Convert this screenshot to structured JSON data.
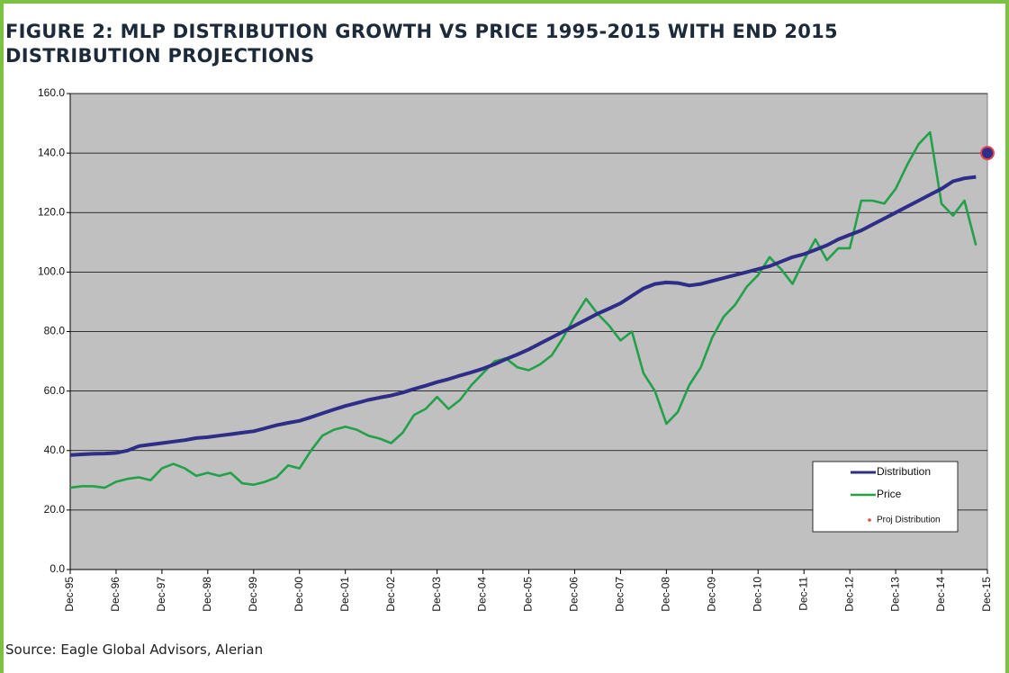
{
  "chart_data": {
    "type": "line",
    "title": "FIGURE 2: MLP DISTRIBUTION GROWTH VS PRICE 1995-2015 WITH END 2015 DISTRIBUTION PROJECTIONS",
    "source": "Source: Eagle Global Advisors, Alerian",
    "x": [
      "1995-12",
      "1996-03",
      "1996-06",
      "1996-09",
      "1996-12",
      "1997-03",
      "1997-06",
      "1997-09",
      "1997-12",
      "1998-03",
      "1998-06",
      "1998-09",
      "1998-12",
      "1999-03",
      "1999-06",
      "1999-09",
      "1999-12",
      "2000-03",
      "2000-06",
      "2000-09",
      "2000-12",
      "2001-03",
      "2001-06",
      "2001-09",
      "2001-12",
      "2002-03",
      "2002-06",
      "2002-09",
      "2002-12",
      "2003-03",
      "2003-06",
      "2003-09",
      "2003-12",
      "2004-03",
      "2004-06",
      "2004-09",
      "2004-12",
      "2005-03",
      "2005-06",
      "2005-09",
      "2005-12",
      "2006-03",
      "2006-06",
      "2006-09",
      "2006-12",
      "2007-03",
      "2007-06",
      "2007-09",
      "2007-12",
      "2008-03",
      "2008-06",
      "2008-09",
      "2008-12",
      "2009-03",
      "2009-06",
      "2009-09",
      "2009-12",
      "2010-03",
      "2010-06",
      "2010-09",
      "2010-12",
      "2011-03",
      "2011-06",
      "2011-09",
      "2011-12",
      "2012-03",
      "2012-06",
      "2012-09",
      "2012-12",
      "2013-03",
      "2013-06",
      "2013-09",
      "2013-12",
      "2014-03",
      "2014-06",
      "2014-09",
      "2014-12",
      "2015-03",
      "2015-06",
      "2015-09"
    ],
    "series": [
      {
        "name": "Distribution",
        "color": "#2e2d88",
        "values": [
          38.5,
          38.7,
          38.9,
          39.0,
          39.2,
          40.0,
          41.5,
          42.0,
          42.5,
          43.0,
          43.5,
          44.2,
          44.5,
          45.0,
          45.5,
          46.0,
          46.5,
          47.5,
          48.5,
          49.3,
          50.0,
          51.2,
          52.5,
          53.8,
          55.0,
          56.0,
          57.0,
          57.8,
          58.5,
          59.5,
          60.7,
          61.8,
          63.0,
          64.0,
          65.2,
          66.3,
          67.5,
          69.0,
          70.7,
          72.3,
          74.0,
          76.0,
          78.0,
          80.0,
          82.0,
          84.0,
          86.0,
          87.7,
          89.5,
          92.0,
          94.5,
          96.0,
          96.5,
          96.3,
          95.5,
          96.0,
          97.0,
          98.0,
          99.0,
          100.0,
          101.0,
          102.0,
          103.5,
          105.0,
          106.0,
          107.5,
          109.0,
          111.0,
          112.5,
          114.0,
          116.0,
          118.0,
          120.0,
          122.0,
          124.0,
          126.0,
          128.0,
          130.5,
          131.5,
          132.0
        ]
      },
      {
        "name": "Price",
        "color": "#22a04a",
        "values": [
          27.5,
          28,
          28,
          27.5,
          29.5,
          30.5,
          31,
          30,
          34,
          35.5,
          34,
          31.5,
          32.5,
          31.5,
          32.5,
          29,
          28.5,
          29.5,
          31,
          35,
          34,
          40,
          45,
          47,
          48,
          47,
          45,
          44,
          42.5,
          46,
          52,
          54,
          58,
          54,
          57,
          62,
          66,
          70,
          71,
          68,
          67,
          69,
          72,
          78,
          85,
          91,
          86,
          82,
          77,
          80,
          66,
          60,
          49,
          53,
          62,
          68,
          78,
          85,
          89,
          95,
          99,
          105,
          101,
          96,
          104,
          111,
          104,
          108,
          108,
          124,
          124,
          123,
          128,
          136,
          143,
          147,
          123,
          119,
          124,
          109
        ]
      }
    ],
    "projection": {
      "name": "Proj Distribution",
      "x": "2015-12",
      "value": 140,
      "color": "#2e2d88",
      "edge_color": "#e8434a"
    },
    "xlim": [
      "1995-12",
      "2015-12"
    ],
    "xticks": [
      {
        "value": "1995-12",
        "label": "Dec-95"
      },
      {
        "value": "1996-12",
        "label": "Dec-96"
      },
      {
        "value": "1997-12",
        "label": "Dec-97"
      },
      {
        "value": "1998-12",
        "label": "Dec-98"
      },
      {
        "value": "1999-12",
        "label": "Dec-99"
      },
      {
        "value": "2000-12",
        "label": "Dec-00"
      },
      {
        "value": "2001-12",
        "label": "Dec-01"
      },
      {
        "value": "2002-12",
        "label": "Dec-02"
      },
      {
        "value": "2003-12",
        "label": "Dec-03"
      },
      {
        "value": "2004-12",
        "label": "Dec-04"
      },
      {
        "value": "2005-12",
        "label": "Dec-05"
      },
      {
        "value": "2006-12",
        "label": "Dec-06"
      },
      {
        "value": "2007-12",
        "label": "Dec-07"
      },
      {
        "value": "2008-12",
        "label": "Dec-08"
      },
      {
        "value": "2009-12",
        "label": "Dec-09"
      },
      {
        "value": "2010-12",
        "label": "Dec-10"
      },
      {
        "value": "2011-12",
        "label": "Dec-11"
      },
      {
        "value": "2012-12",
        "label": "Dec-12"
      },
      {
        "value": "2013-12",
        "label": "Dec-13"
      },
      {
        "value": "2014-12",
        "label": "Dec-14"
      },
      {
        "value": "2015-12",
        "label": "Dec-15"
      }
    ],
    "ylim": [
      0,
      160
    ],
    "yticks": [
      {
        "value": 0,
        "label": "0.0"
      },
      {
        "value": 20,
        "label": "20.0"
      },
      {
        "value": 40,
        "label": "40.0"
      },
      {
        "value": 60,
        "label": "60.0"
      },
      {
        "value": 80,
        "label": "80.0"
      },
      {
        "value": 100,
        "label": "100.0"
      },
      {
        "value": 120,
        "label": "120.0"
      },
      {
        "value": 140,
        "label": "140.0"
      },
      {
        "value": 160,
        "label": "160.0"
      }
    ],
    "grid": true,
    "plot_background": "#c0c0c0",
    "legend": "lower right"
  }
}
